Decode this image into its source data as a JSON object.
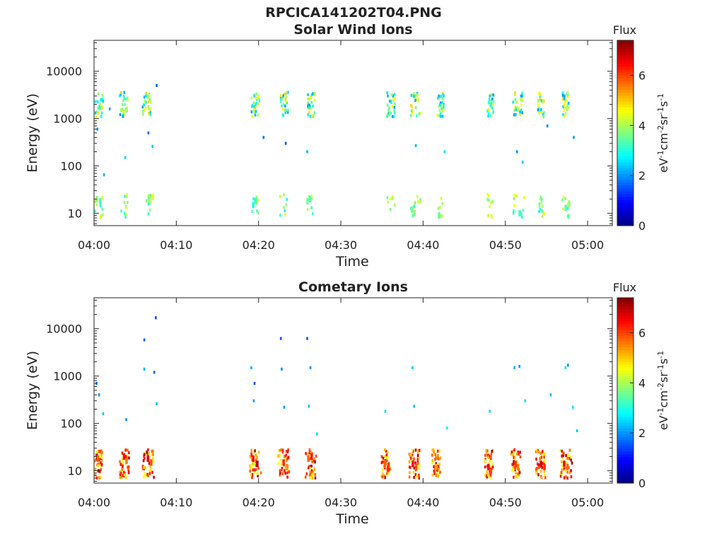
{
  "figure_title": "RPCICA141202T04.PNG",
  "colorbar": {
    "title": "Flux",
    "unit_parts": [
      "eV",
      "-1",
      "cm",
      "-2",
      "sr",
      "-1",
      "s",
      "-1"
    ],
    "range": [
      0,
      7.4
    ],
    "ticks": [
      0,
      2,
      4,
      6
    ],
    "tick_labels": [
      "0",
      "2",
      "4",
      "6"
    ],
    "colormap": "jet"
  },
  "chart_data": [
    {
      "type": "heatmap",
      "title": "Solar Wind Ions",
      "xlabel": "Time",
      "ylabel": "Energy (eV)",
      "x_ticks": [
        "04:00",
        "04:10",
        "04:20",
        "04:30",
        "04:40",
        "04:50",
        "05:00"
      ],
      "x_range_minutes": [
        0,
        63
      ],
      "y_scale": "log",
      "y_range_eV": [
        5.5,
        45000
      ],
      "y_ticks": [
        10,
        100,
        1000,
        10000
      ],
      "y_tick_labels": [
        "10",
        "100",
        "1000",
        "10000"
      ],
      "bursts_start_minute": [
        0.0,
        3.0,
        5.8,
        19.0,
        22.5,
        25.8,
        35.5,
        38.4,
        41.6,
        47.7,
        50.8,
        53.8,
        56.8
      ],
      "bursts_end_minute": [
        1.0,
        4.0,
        6.8,
        20.0,
        23.5,
        26.8,
        36.5,
        39.6,
        42.4,
        48.5,
        52.2,
        54.6,
        57.6
      ],
      "cells": [
        [
          3.0,
          3000,
          2.8
        ],
        [
          3.5,
          3000,
          3.0
        ],
        [
          3.3,
          1600,
          3.8
        ],
        [
          3.8,
          1500,
          4.2
        ],
        [
          6.0,
          1500,
          4.4
        ],
        [
          6.2,
          3000,
          2.7
        ],
        [
          6.5,
          1800,
          3.9
        ],
        [
          19.3,
          1500,
          4.3
        ],
        [
          19.5,
          1700,
          4.9
        ],
        [
          19.4,
          3000,
          2.6
        ],
        [
          22.8,
          1600,
          4.4
        ],
        [
          23.1,
          1500,
          3.8
        ],
        [
          22.9,
          3000,
          2.2
        ],
        [
          26.1,
          1500,
          4.6
        ],
        [
          26.3,
          1700,
          4.0
        ],
        [
          25.9,
          3200,
          2.4
        ],
        [
          35.7,
          1500,
          3.6
        ],
        [
          35.6,
          3000,
          2.3
        ],
        [
          38.6,
          1500,
          4.2
        ],
        [
          39.0,
          1700,
          3.5
        ],
        [
          38.8,
          3000,
          2.5
        ],
        [
          41.9,
          1500,
          4.0
        ],
        [
          41.8,
          3000,
          2.2
        ],
        [
          47.9,
          1500,
          4.3
        ],
        [
          48.0,
          3000,
          2.4
        ],
        [
          51.0,
          1500,
          3.7
        ],
        [
          51.4,
          1700,
          4.6
        ],
        [
          51.8,
          3000,
          2.1
        ],
        [
          54.1,
          1500,
          3.0
        ],
        [
          57.0,
          1500,
          4.5
        ],
        [
          57.2,
          1700,
          4.2
        ],
        [
          57.1,
          3000,
          2.3
        ],
        [
          0.2,
          20,
          3.8
        ],
        [
          0.6,
          18,
          3.3
        ],
        [
          6.6,
          20,
          3.9
        ],
        [
          7.0,
          22,
          4.4
        ],
        [
          19.6,
          18,
          3.4
        ],
        [
          19.2,
          15,
          3.0
        ],
        [
          25.8,
          18,
          3.6
        ],
        [
          26.1,
          20,
          3.3
        ],
        [
          38.5,
          12,
          3.6
        ],
        [
          38.8,
          10,
          3.8
        ],
        [
          41.8,
          9,
          3.4
        ],
        [
          51.6,
          10,
          3.2
        ],
        [
          57.6,
          16,
          3.9
        ],
        [
          57.2,
          13,
          3.4
        ],
        [
          0.3,
          600,
          2.0
        ],
        [
          1.8,
          1600,
          2.1
        ],
        [
          6.5,
          500,
          1.7
        ],
        [
          7.5,
          5000,
          1.6
        ],
        [
          7.0,
          260,
          2.4
        ],
        [
          1.1,
          65,
          2.2
        ],
        [
          3.7,
          150,
          2.5
        ],
        [
          20.5,
          400,
          1.8
        ],
        [
          23.2,
          300,
          1.6
        ],
        [
          25.8,
          200,
          2.2
        ],
        [
          39.0,
          270,
          2.3
        ],
        [
          42.5,
          200,
          2.6
        ],
        [
          51.3,
          200,
          2.0
        ],
        [
          52.0,
          120,
          2.4
        ],
        [
          55.0,
          700,
          1.9
        ],
        [
          58.2,
          400,
          2.1
        ]
      ]
    },
    {
      "type": "heatmap",
      "title": "Cometary Ions",
      "xlabel": "Time",
      "ylabel": "Energy (eV)",
      "x_ticks": [
        "04:00",
        "04:10",
        "04:20",
        "04:30",
        "04:40",
        "04:50",
        "05:00"
      ],
      "x_range_minutes": [
        0,
        63
      ],
      "y_scale": "log",
      "y_range_eV": [
        5.5,
        45000
      ],
      "y_ticks": [
        10,
        100,
        1000,
        10000
      ],
      "y_tick_labels": [
        "10",
        "100",
        "1000",
        "10000"
      ],
      "bursts_start_minute": [
        0.0,
        3.0,
        5.8,
        18.8,
        22.2,
        25.6,
        34.8,
        38.2,
        41.0,
        47.4,
        50.6,
        53.6,
        56.6
      ],
      "bursts_end_minute": [
        0.9,
        4.2,
        7.2,
        20.2,
        23.6,
        26.9,
        35.9,
        39.5,
        42.0,
        48.4,
        51.8,
        54.8,
        58.0
      ],
      "cells": [
        [
          0.3,
          18,
          5.8
        ],
        [
          3.5,
          20,
          6.4
        ],
        [
          3.8,
          16,
          5.6
        ],
        [
          6.4,
          18,
          6.6
        ],
        [
          6.8,
          15,
          5.9
        ],
        [
          19.2,
          18,
          6.4
        ],
        [
          19.7,
          14,
          7.0
        ],
        [
          22.9,
          15,
          6.2
        ],
        [
          23.3,
          12,
          5.4
        ],
        [
          25.9,
          18,
          5.7
        ],
        [
          26.3,
          20,
          6.4
        ],
        [
          35.2,
          14,
          5.8
        ],
        [
          35.6,
          11,
          6.2
        ],
        [
          38.6,
          14,
          6.6
        ],
        [
          39.0,
          12,
          5.9
        ],
        [
          41.4,
          12,
          5.3
        ],
        [
          47.8,
          12,
          6.5
        ],
        [
          48.1,
          10,
          6.0
        ],
        [
          51.1,
          14,
          6.1
        ],
        [
          51.4,
          12,
          5.6
        ],
        [
          54.2,
          14,
          6.8
        ],
        [
          54.6,
          12,
          6.2
        ],
        [
          57.0,
          14,
          6.6
        ],
        [
          57.4,
          12,
          5.7
        ],
        [
          0.2,
          700,
          1.8
        ],
        [
          0.5,
          400,
          2.0
        ],
        [
          1.0,
          160,
          2.4
        ],
        [
          6.0,
          5800,
          1.6
        ],
        [
          6.0,
          1400,
          2.2
        ],
        [
          7.4,
          17000,
          1.4
        ],
        [
          7.2,
          1200,
          1.7
        ],
        [
          7.5,
          260,
          2.3
        ],
        [
          3.8,
          120,
          2.0
        ],
        [
          19.0,
          1500,
          2.2
        ],
        [
          19.4,
          700,
          1.5
        ],
        [
          19.3,
          300,
          2.1
        ],
        [
          22.6,
          6200,
          1.5
        ],
        [
          22.7,
          1400,
          1.9
        ],
        [
          23.0,
          220,
          2.1
        ],
        [
          25.8,
          6200,
          1.5
        ],
        [
          26.2,
          1500,
          2.0
        ],
        [
          26.0,
          230,
          2.3
        ],
        [
          27.0,
          60,
          2.5
        ],
        [
          35.3,
          180,
          2.6
        ],
        [
          38.6,
          1500,
          2.4
        ],
        [
          38.8,
          230,
          2.3
        ],
        [
          42.8,
          80,
          2.7
        ],
        [
          48.0,
          180,
          2.5
        ],
        [
          51.0,
          1500,
          2.2
        ],
        [
          51.6,
          1600,
          2.0
        ],
        [
          52.3,
          300,
          2.6
        ],
        [
          55.4,
          400,
          2.3
        ],
        [
          57.2,
          1500,
          2.6
        ],
        [
          57.5,
          1700,
          2.0
        ],
        [
          58.1,
          220,
          2.6
        ],
        [
          58.6,
          70,
          2.4
        ]
      ]
    }
  ]
}
